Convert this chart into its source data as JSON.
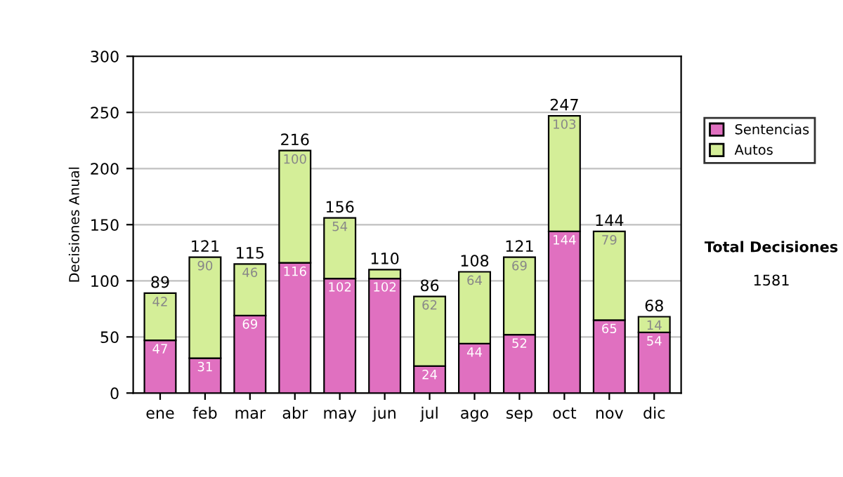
{
  "chart_data": {
    "type": "bar",
    "stacked": true,
    "ylabel": "Decisiones Anual",
    "categories": [
      "ene",
      "feb",
      "mar",
      "abr",
      "may",
      "jun",
      "jul",
      "ago",
      "sep",
      "oct",
      "nov",
      "dic"
    ],
    "series": [
      {
        "name": "Sentencias",
        "color": "#e070c0",
        "values": [
          47,
          31,
          69,
          116,
          102,
          102,
          24,
          44,
          52,
          144,
          65,
          54
        ],
        "value_labels": [
          "47",
          "31",
          "69",
          "116",
          "102",
          "102",
          "24",
          "44",
          "52",
          "144",
          "65",
          "54"
        ]
      },
      {
        "name": "Autos",
        "color": "#d4ee98",
        "values": [
          42,
          90,
          46,
          100,
          54,
          8,
          62,
          64,
          69,
          103,
          79,
          14
        ],
        "value_labels": [
          "42",
          "90",
          "46",
          "100",
          "54",
          null,
          "62",
          "64",
          "69",
          "103",
          "79",
          "14"
        ]
      }
    ],
    "totals": [
      "89",
      "121",
      "115",
      "216",
      "156",
      "110",
      "86",
      "108",
      "121",
      "247",
      "144",
      "68"
    ],
    "ylim": [
      0,
      300
    ],
    "yticks": [
      0,
      50,
      100,
      150,
      200,
      250,
      300
    ],
    "grid": "y",
    "legend": "right",
    "annotations": [
      "Total Decisiones",
      "1581"
    ]
  }
}
